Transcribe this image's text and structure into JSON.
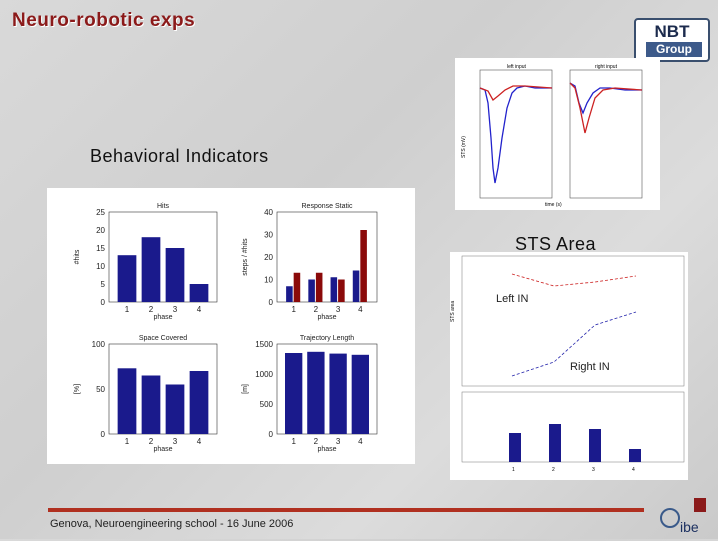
{
  "slide": {
    "title": "Neuro-robotic exps",
    "logo_top": "NBT",
    "logo_bottom": "Group",
    "behavioral_heading": "Behavioral Indicators",
    "sts_heading": "STS Area",
    "footer": "Genova, Neuroengineering school - 16 June 2006",
    "footer_logo": "ibe"
  },
  "colors": {
    "bar_blue": "#1a1a8c",
    "bar_red": "#8b0a0a",
    "title_red": "#8b1a1a",
    "footer_line": "#b03020"
  },
  "chart_data": [
    {
      "type": "bar",
      "title": "Hits",
      "xlabel": "phase",
      "ylabel": "#hits",
      "categories": [
        "1",
        "2",
        "3",
        "4"
      ],
      "values": [
        13,
        18,
        15,
        5
      ],
      "ylim": [
        0,
        25
      ],
      "yticks": [
        "0",
        "5",
        "10",
        "15",
        "20",
        "25"
      ]
    },
    {
      "type": "bar",
      "title": "Response Static",
      "xlabel": "phase",
      "ylabel": "steps / #hits",
      "categories": [
        "1",
        "2",
        "3",
        "4"
      ],
      "series": [
        {
          "color": "#1a1a8c",
          "values": [
            7,
            10,
            11,
            14
          ]
        },
        {
          "color": "#8b0a0a",
          "values": [
            13,
            13,
            10,
            32
          ]
        }
      ],
      "ylim": [
        0,
        40
      ],
      "yticks": [
        "0",
        "10",
        "20",
        "30",
        "40"
      ]
    },
    {
      "type": "bar",
      "title": "Space Covered",
      "xlabel": "phase",
      "ylabel": "[%]",
      "categories": [
        "1",
        "2",
        "3",
        "4"
      ],
      "values": [
        73,
        65,
        55,
        70
      ],
      "ylim": [
        0,
        100
      ],
      "yticks": [
        "0",
        "50",
        "100"
      ]
    },
    {
      "type": "bar",
      "title": "Trajectory Length",
      "xlabel": "phase",
      "ylabel": "[m]",
      "categories": [
        "1",
        "2",
        "3",
        "4"
      ],
      "values": [
        1350,
        1370,
        1340,
        1320
      ],
      "ylim": [
        0,
        1500
      ],
      "yticks": [
        "0",
        "500",
        "1000",
        "1500"
      ]
    },
    {
      "type": "line",
      "title_left": "left input",
      "title_right": "right input",
      "xlabel": "time (s)",
      "ylabel": "STS (mV)"
    },
    {
      "type": "line",
      "left_label": "Left IN",
      "right_label": "Right IN",
      "ylabel": "STS area",
      "xticks": [
        "1",
        "2",
        "3",
        "4"
      ]
    }
  ]
}
